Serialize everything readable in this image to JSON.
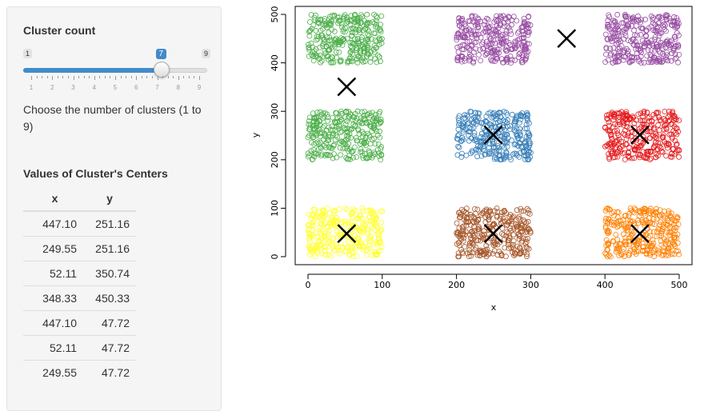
{
  "slider": {
    "label": "Cluster count",
    "min": 1,
    "max": 9,
    "value": 7,
    "min_label": "1",
    "max_label": "9",
    "value_label": "7",
    "ticks": [
      "1",
      "2",
      "3",
      "4",
      "5",
      "6",
      "7",
      "8",
      "9"
    ],
    "accent_color": "#428bca"
  },
  "help_text": "Choose the number of clusters (1 to 9)",
  "centers_table": {
    "title": "Values of Cluster's Centers",
    "columns": [
      "x",
      "y"
    ],
    "rows": [
      [
        "447.10",
        "251.16"
      ],
      [
        "249.55",
        "251.16"
      ],
      [
        "52.11",
        "350.74"
      ],
      [
        "348.33",
        "450.33"
      ],
      [
        "447.10",
        "47.72"
      ],
      [
        "52.11",
        "47.72"
      ],
      [
        "249.55",
        "47.72"
      ]
    ]
  },
  "chart_data": {
    "type": "scatter",
    "xlabel": "x",
    "ylabel": "y",
    "xlim": [
      0,
      500
    ],
    "ylim": [
      0,
      500
    ],
    "x_ticks": [
      "0",
      "100",
      "200",
      "300",
      "400",
      "500"
    ],
    "y_ticks": [
      "0",
      "100",
      "200",
      "300",
      "400",
      "500"
    ],
    "marker": "open-circle",
    "center_marker": "x",
    "grid": false,
    "groups": [
      {
        "x_range": [
          0,
          100
        ],
        "y_range": [
          400,
          500
        ],
        "color": "#4daf4a",
        "count": 300
      },
      {
        "x_range": [
          200,
          300
        ],
        "y_range": [
          400,
          500
        ],
        "color": "#984ea3",
        "count": 300
      },
      {
        "x_range": [
          400,
          500
        ],
        "y_range": [
          400,
          500
        ],
        "color": "#984ea3",
        "count": 300
      },
      {
        "x_range": [
          0,
          100
        ],
        "y_range": [
          200,
          300
        ],
        "color": "#4daf4a",
        "count": 300
      },
      {
        "x_range": [
          200,
          300
        ],
        "y_range": [
          200,
          300
        ],
        "color": "#377eb8",
        "count": 300
      },
      {
        "x_range": [
          400,
          500
        ],
        "y_range": [
          200,
          300
        ],
        "color": "#e41a1c",
        "count": 300
      },
      {
        "x_range": [
          0,
          100
        ],
        "y_range": [
          0,
          100
        ],
        "color": "#ffff33",
        "count": 300
      },
      {
        "x_range": [
          200,
          300
        ],
        "y_range": [
          0,
          100
        ],
        "color": "#a65628",
        "count": 300
      },
      {
        "x_range": [
          400,
          500
        ],
        "y_range": [
          0,
          100
        ],
        "color": "#ff7f00",
        "count": 300
      }
    ],
    "centers": [
      {
        "x": 447.1,
        "y": 251.16
      },
      {
        "x": 249.55,
        "y": 251.16
      },
      {
        "x": 52.11,
        "y": 350.74
      },
      {
        "x": 348.33,
        "y": 450.33
      },
      {
        "x": 447.1,
        "y": 47.72
      },
      {
        "x": 52.11,
        "y": 47.72
      },
      {
        "x": 249.55,
        "y": 47.72
      }
    ]
  }
}
